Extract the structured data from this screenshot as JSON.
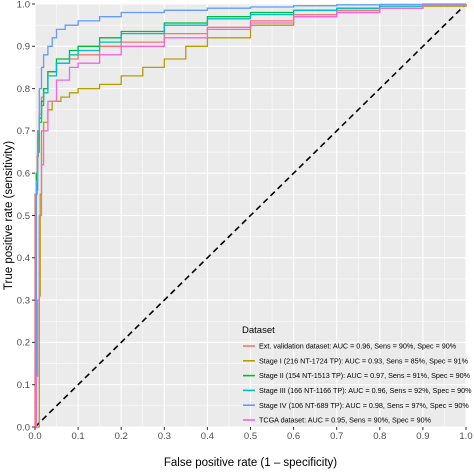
{
  "chart_data": {
    "type": "line",
    "xlabel": "False positive rate (1 – specificity)",
    "ylabel": "True positive rate (sensitivity)",
    "xlim": [
      0,
      1
    ],
    "ylim": [
      0,
      1
    ],
    "x_ticks": [
      "0.0",
      "0.1",
      "0.2",
      "0.3",
      "0.4",
      "0.5",
      "0.6",
      "0.7",
      "0.8",
      "0.9",
      "1.0"
    ],
    "y_ticks": [
      "0.0",
      "0.1",
      "0.2",
      "0.3",
      "0.4",
      "0.5",
      "0.6",
      "0.7",
      "0.8",
      "0.9",
      "1.0"
    ],
    "grid": true,
    "panel_background": "#ebebeb",
    "grid_color": "#ffffff",
    "legend": {
      "title": "Dataset",
      "position": "bottom-right inside"
    },
    "reference_line": {
      "type": "diagonal",
      "style": "dashed",
      "color": "#000000",
      "from": [
        0,
        0
      ],
      "to": [
        1,
        1
      ]
    },
    "series": [
      {
        "name": "Ext. validation dataset: AUC = 0.96, Sens = 90%, Spec = 90%",
        "color": "#f8766d",
        "x": [
          0,
          0,
          0.005,
          0.008,
          0.01,
          0.015,
          0.02,
          0.03,
          0.05,
          0.08,
          0.1,
          0.15,
          0.2,
          0.3,
          0.4,
          0.5,
          0.6,
          0.7,
          0.8,
          0.9,
          1.0
        ],
        "y": [
          0,
          0.55,
          0.64,
          0.7,
          0.74,
          0.78,
          0.8,
          0.84,
          0.86,
          0.87,
          0.88,
          0.9,
          0.91,
          0.93,
          0.945,
          0.96,
          0.975,
          0.985,
          0.99,
          0.995,
          1.0
        ]
      },
      {
        "name": "Stage I (216 NT-1724 TP): AUC = 0.93, Sens = 85%, Spec = 91%",
        "color": "#b79f00",
        "x": [
          0,
          0.01,
          0.012,
          0.015,
          0.02,
          0.03,
          0.04,
          0.06,
          0.08,
          0.1,
          0.15,
          0.2,
          0.25,
          0.3,
          0.35,
          0.4,
          0.5,
          0.6,
          0.7,
          0.8,
          0.9,
          1.0
        ],
        "y": [
          0,
          0.31,
          0.55,
          0.7,
          0.72,
          0.75,
          0.77,
          0.78,
          0.79,
          0.8,
          0.81,
          0.83,
          0.85,
          0.87,
          0.9,
          0.92,
          0.95,
          0.97,
          0.98,
          0.99,
          0.995,
          1.0
        ]
      },
      {
        "name": "Stage II (154 NT-1513 TP): AUC = 0.97, Sens = 91%, Spec = 90%",
        "color": "#00ba38",
        "x": [
          0,
          0.003,
          0.006,
          0.01,
          0.015,
          0.02,
          0.03,
          0.05,
          0.08,
          0.1,
          0.15,
          0.2,
          0.3,
          0.4,
          0.5,
          0.6,
          0.7,
          0.8,
          0.9,
          1.0
        ],
        "y": [
          0,
          0.6,
          0.68,
          0.73,
          0.77,
          0.8,
          0.84,
          0.87,
          0.89,
          0.9,
          0.92,
          0.935,
          0.955,
          0.97,
          0.98,
          0.985,
          0.99,
          0.995,
          0.998,
          1.0
        ]
      },
      {
        "name": "Stage III (166 NT-1166 TP): AUC = 0.96, Sens = 92%, Spec = 90%",
        "color": "#00bfc4",
        "x": [
          0,
          0.003,
          0.006,
          0.01,
          0.015,
          0.02,
          0.03,
          0.05,
          0.08,
          0.1,
          0.15,
          0.2,
          0.3,
          0.4,
          0.5,
          0.6,
          0.7,
          0.8,
          0.9,
          1.0
        ],
        "y": [
          0,
          0.56,
          0.65,
          0.72,
          0.76,
          0.79,
          0.83,
          0.86,
          0.88,
          0.89,
          0.91,
          0.93,
          0.95,
          0.965,
          0.975,
          0.985,
          0.99,
          0.995,
          0.998,
          1.0
        ]
      },
      {
        "name": "Stage IV (106 NT-689 TP): AUC = 0.98, Sens = 97%, Spec = 90%",
        "color": "#619cff",
        "x": [
          0,
          0.003,
          0.006,
          0.01,
          0.015,
          0.02,
          0.03,
          0.04,
          0.05,
          0.07,
          0.1,
          0.15,
          0.2,
          0.3,
          0.4,
          0.5,
          0.6,
          0.7,
          0.8,
          0.9,
          1.0
        ],
        "y": [
          0,
          0.58,
          0.7,
          0.8,
          0.85,
          0.88,
          0.9,
          0.92,
          0.94,
          0.95,
          0.96,
          0.97,
          0.98,
          0.985,
          0.99,
          0.993,
          0.996,
          0.998,
          0.999,
          1.0,
          1.0
        ]
      },
      {
        "name": "TCGA dataset: AUC = 0.95, Sens = 90%, Spec = 90%",
        "color": "#f564e3",
        "x": [
          0,
          0.003,
          0.006,
          0.01,
          0.015,
          0.02,
          0.03,
          0.05,
          0.08,
          0.1,
          0.15,
          0.2,
          0.3,
          0.4,
          0.5,
          0.6,
          0.7,
          0.8,
          0.9,
          1.0
        ],
        "y": [
          0,
          0.12,
          0.3,
          0.5,
          0.62,
          0.7,
          0.77,
          0.82,
          0.85,
          0.86,
          0.88,
          0.9,
          0.92,
          0.94,
          0.955,
          0.97,
          0.98,
          0.99,
          0.997,
          1.0
        ]
      }
    ]
  }
}
